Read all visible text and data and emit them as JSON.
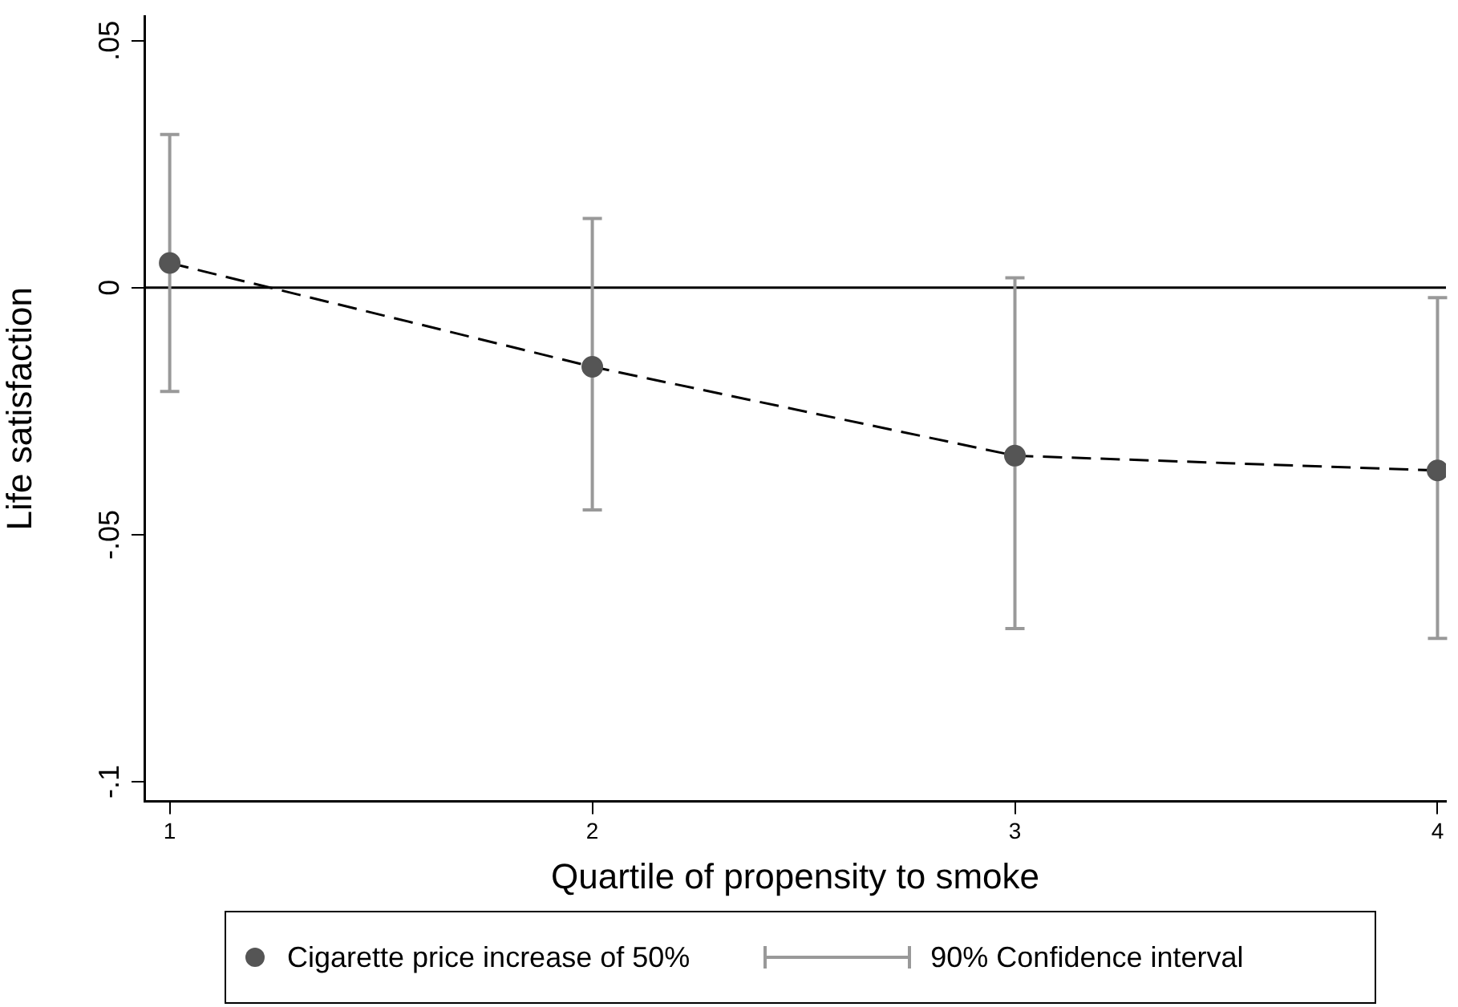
{
  "chart_data": {
    "type": "line",
    "xlabel": "Quartile of propensity to smoke",
    "ylabel": "Life satisfaction",
    "x": [
      1,
      2,
      3,
      4
    ],
    "series": [
      {
        "name": "Cigarette price increase of 50%",
        "color": "#555555",
        "values": [
          0.005,
          -0.016,
          -0.034,
          -0.037
        ],
        "errors": [
          [
            -0.021,
            0.031
          ],
          [
            -0.045,
            0.014
          ],
          [
            -0.069,
            0.002
          ],
          [
            -0.071,
            -0.002
          ]
        ]
      }
    ],
    "xlim": [
      0.94,
      4.02
    ],
    "xticks": [
      1,
      2,
      3,
      4
    ],
    "ylim": [
      -0.104,
      0.055
    ],
    "yticks": [
      {
        "value": -0.1,
        "label": "-.1"
      },
      {
        "value": -0.05,
        "label": "-.05"
      },
      {
        "value": 0,
        "label": "0"
      },
      {
        "value": 0.05,
        "label": ".05"
      }
    ],
    "ref_lines": [
      {
        "axis": "y",
        "value": 0,
        "color": "#000000"
      }
    ],
    "annotations": [
      "90% Confidence interval"
    ],
    "marker": "circle",
    "line_style": "dashed",
    "grid": false,
    "legend": "bottom"
  }
}
